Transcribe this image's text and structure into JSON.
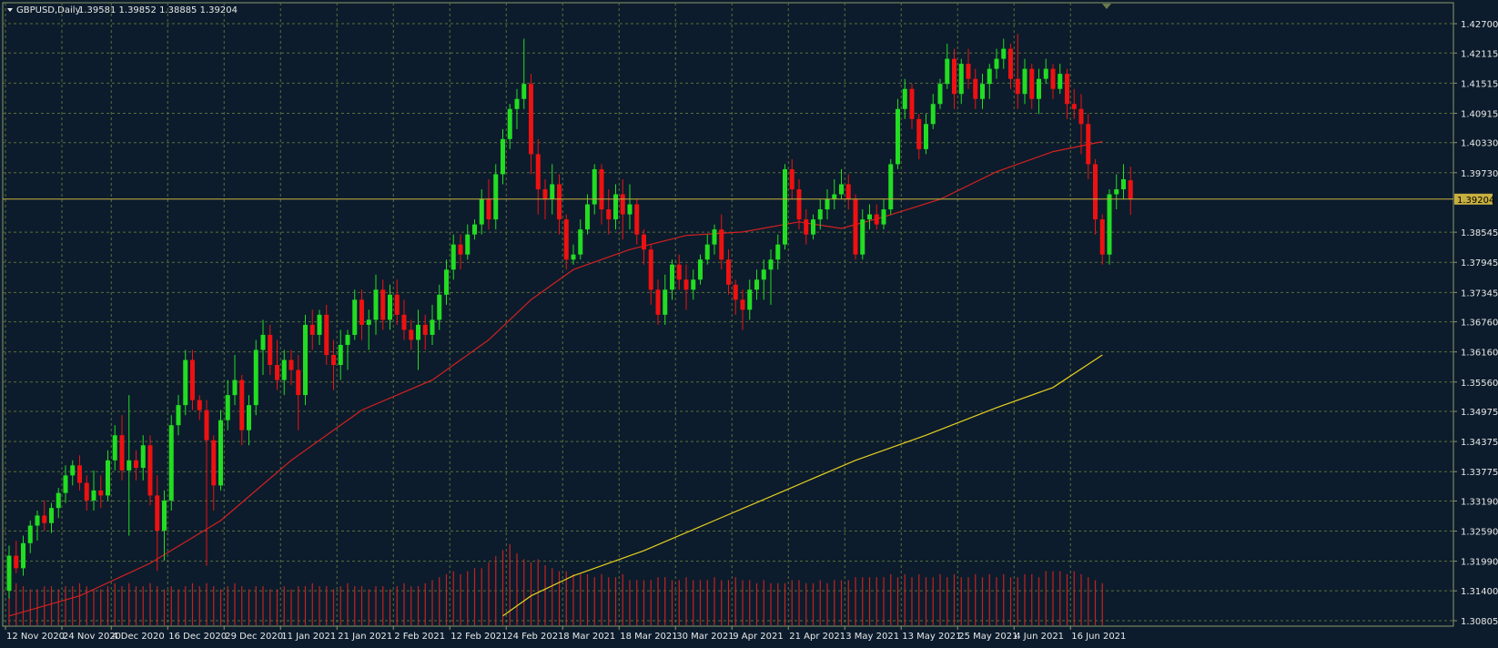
{
  "header": {
    "symbol_label": "GBPUSD,Daily",
    "ohlc": "1.39581 1.39852 1.38885 1.39204"
  },
  "colors": {
    "background": "#0c1c2c",
    "grid": "#5b6e3a",
    "frame": "#8a9a6a",
    "text": "#e8e8e8",
    "bull": "#22dd22",
    "bear": "#ee1111",
    "ma_fast": "#d42020",
    "ma_slow": "#e8d020",
    "volume": "#c42222",
    "price_tag_bg": "#c8b040",
    "price_tag_text": "#000000"
  },
  "chart_data": {
    "type": "candlestick",
    "symbol": "GBPUSD",
    "timeframe": "Daily",
    "current_price": "1.39204",
    "current_price_value": 1.39204,
    "ylim": [
      1.30805,
      1.43
    ],
    "y_tick_labels": [
      "1.42700",
      "1.42115",
      "1.41515",
      "1.40915",
      "1.40330",
      "1.39730",
      "1.38545",
      "1.37945",
      "1.37345",
      "1.36760",
      "1.36160",
      "1.35560",
      "1.34975",
      "1.34375",
      "1.33775",
      "1.33190",
      "1.32590",
      "1.31990",
      "1.31400",
      "1.30805"
    ],
    "y_tick_values": [
      1.427,
      1.42115,
      1.41515,
      1.40915,
      1.4033,
      1.3973,
      1.38545,
      1.37945,
      1.37345,
      1.3676,
      1.3616,
      1.3556,
      1.34975,
      1.34375,
      1.33775,
      1.3319,
      1.3259,
      1.3199,
      1.314,
      1.30805
    ],
    "x_tick_labels": [
      "12 Nov 2020",
      "24 Nov 2020",
      "4 Dec 2020",
      "16 Dec 2020",
      "29 Dec 2020",
      "11 Jan 2021",
      "21 Jan 2021",
      "2 Feb 2021",
      "12 Feb 2021",
      "24 Feb 2021",
      "8 Mar 2021",
      "18 Mar 2021",
      "30 Mar 2021",
      "9 Apr 2021",
      "21 Apr 2021",
      "3 May 2021",
      "13 May 2021",
      "25 May 2021",
      "4 Jun 2021",
      "16 Jun 2021"
    ],
    "x_tick_bar_index": [
      0,
      8,
      15,
      23,
      31,
      39,
      47,
      55,
      63,
      71,
      79,
      87,
      95,
      103,
      111,
      119,
      127,
      135,
      143,
      151
    ],
    "grid": true,
    "candles": [
      [
        1.314,
        1.323,
        1.3125,
        1.321
      ],
      [
        1.321,
        1.324,
        1.3175,
        1.3185
      ],
      [
        1.3185,
        1.325,
        1.317,
        1.3235
      ],
      [
        1.3235,
        1.328,
        1.3215,
        1.327
      ],
      [
        1.327,
        1.33,
        1.324,
        1.329
      ],
      [
        1.329,
        1.332,
        1.326,
        1.3275
      ],
      [
        1.3275,
        1.3315,
        1.3255,
        1.3305
      ],
      [
        1.3305,
        1.3345,
        1.3285,
        1.3335
      ],
      [
        1.3335,
        1.339,
        1.3315,
        1.337
      ],
      [
        1.337,
        1.34,
        1.335,
        1.339
      ],
      [
        1.339,
        1.341,
        1.334,
        1.3355
      ],
      [
        1.3355,
        1.337,
        1.33,
        1.332
      ],
      [
        1.332,
        1.338,
        1.33,
        1.334
      ],
      [
        1.334,
        1.337,
        1.3305,
        1.333
      ],
      [
        1.333,
        1.342,
        1.332,
        1.34
      ],
      [
        1.34,
        1.347,
        1.338,
        1.345
      ],
      [
        1.345,
        1.349,
        1.336,
        1.338
      ],
      [
        1.338,
        1.353,
        1.325,
        1.34
      ],
      [
        1.34,
        1.342,
        1.336,
        1.3385
      ],
      [
        1.3385,
        1.345,
        1.336,
        1.343
      ],
      [
        1.343,
        1.345,
        1.331,
        1.333
      ],
      [
        1.333,
        1.337,
        1.318,
        1.326
      ],
      [
        1.326,
        1.334,
        1.32,
        1.332
      ],
      [
        1.332,
        1.349,
        1.33,
        1.347
      ],
      [
        1.347,
        1.353,
        1.345,
        1.351
      ],
      [
        1.351,
        1.362,
        1.349,
        1.36
      ],
      [
        1.36,
        1.362,
        1.35,
        1.352
      ],
      [
        1.352,
        1.353,
        1.348,
        1.35
      ],
      [
        1.35,
        1.352,
        1.319,
        1.344
      ],
      [
        1.344,
        1.345,
        1.33,
        1.335
      ],
      [
        1.335,
        1.35,
        1.334,
        1.348
      ],
      [
        1.348,
        1.356,
        1.346,
        1.353
      ],
      [
        1.353,
        1.361,
        1.351,
        1.356
      ],
      [
        1.356,
        1.357,
        1.343,
        1.346
      ],
      [
        1.346,
        1.353,
        1.343,
        1.351
      ],
      [
        1.351,
        1.364,
        1.349,
        1.362
      ],
      [
        1.362,
        1.368,
        1.357,
        1.365
      ],
      [
        1.365,
        1.367,
        1.357,
        1.359
      ],
      [
        1.359,
        1.364,
        1.354,
        1.356
      ],
      [
        1.356,
        1.362,
        1.353,
        1.36
      ],
      [
        1.36,
        1.362,
        1.355,
        1.358
      ],
      [
        1.358,
        1.361,
        1.346,
        1.353
      ],
      [
        1.353,
        1.369,
        1.351,
        1.367
      ],
      [
        1.367,
        1.37,
        1.362,
        1.365
      ],
      [
        1.365,
        1.37,
        1.363,
        1.369
      ],
      [
        1.369,
        1.371,
        1.359,
        1.361
      ],
      [
        1.361,
        1.364,
        1.354,
        1.359
      ],
      [
        1.359,
        1.366,
        1.356,
        1.363
      ],
      [
        1.363,
        1.366,
        1.358,
        1.365
      ],
      [
        1.365,
        1.374,
        1.364,
        1.372
      ],
      [
        1.372,
        1.374,
        1.364,
        1.367
      ],
      [
        1.367,
        1.37,
        1.362,
        1.368
      ],
      [
        1.368,
        1.377,
        1.365,
        1.374
      ],
      [
        1.374,
        1.376,
        1.366,
        1.368
      ],
      [
        1.368,
        1.375,
        1.366,
        1.373
      ],
      [
        1.373,
        1.376,
        1.367,
        1.369
      ],
      [
        1.369,
        1.372,
        1.364,
        1.366
      ],
      [
        1.366,
        1.368,
        1.362,
        1.364
      ],
      [
        1.364,
        1.37,
        1.358,
        1.367
      ],
      [
        1.367,
        1.369,
        1.362,
        1.365
      ],
      [
        1.365,
        1.371,
        1.363,
        1.368
      ],
      [
        1.368,
        1.375,
        1.366,
        1.373
      ],
      [
        1.373,
        1.38,
        1.371,
        1.378
      ],
      [
        1.378,
        1.385,
        1.376,
        1.383
      ],
      [
        1.383,
        1.385,
        1.378,
        1.381
      ],
      [
        1.381,
        1.387,
        1.38,
        1.385
      ],
      [
        1.385,
        1.388,
        1.384,
        1.387
      ],
      [
        1.387,
        1.394,
        1.385,
        1.392
      ],
      [
        1.392,
        1.396,
        1.386,
        1.388
      ],
      [
        1.388,
        1.399,
        1.386,
        1.397
      ],
      [
        1.397,
        1.406,
        1.395,
        1.404
      ],
      [
        1.404,
        1.411,
        1.402,
        1.41
      ],
      [
        1.41,
        1.414,
        1.406,
        1.412
      ],
      [
        1.412,
        1.424,
        1.41,
        1.415
      ],
      [
        1.415,
        1.417,
        1.397,
        1.401
      ],
      [
        1.401,
        1.404,
        1.389,
        1.394
      ],
      [
        1.394,
        1.396,
        1.388,
        1.392
      ],
      [
        1.392,
        1.399,
        1.389,
        1.395
      ],
      [
        1.395,
        1.397,
        1.385,
        1.388
      ],
      [
        1.388,
        1.389,
        1.378,
        1.38
      ],
      [
        1.38,
        1.383,
        1.379,
        1.381
      ],
      [
        1.381,
        1.388,
        1.38,
        1.386
      ],
      [
        1.386,
        1.393,
        1.385,
        1.391
      ],
      [
        1.391,
        1.399,
        1.389,
        1.398
      ],
      [
        1.398,
        1.399,
        1.387,
        1.39
      ],
      [
        1.39,
        1.394,
        1.385,
        1.388
      ],
      [
        1.388,
        1.395,
        1.386,
        1.393
      ],
      [
        1.393,
        1.396,
        1.384,
        1.389
      ],
      [
        1.389,
        1.395,
        1.386,
        1.391
      ],
      [
        1.391,
        1.392,
        1.383,
        1.385
      ],
      [
        1.385,
        1.386,
        1.379,
        1.382
      ],
      [
        1.382,
        1.383,
        1.371,
        1.374
      ],
      [
        1.374,
        1.376,
        1.367,
        1.369
      ],
      [
        1.369,
        1.377,
        1.367,
        1.374
      ],
      [
        1.374,
        1.38,
        1.372,
        1.379
      ],
      [
        1.379,
        1.381,
        1.374,
        1.376
      ],
      [
        1.376,
        1.379,
        1.37,
        1.374
      ],
      [
        1.374,
        1.378,
        1.372,
        1.376
      ],
      [
        1.376,
        1.381,
        1.375,
        1.38
      ],
      [
        1.38,
        1.385,
        1.379,
        1.383
      ],
      [
        1.383,
        1.387,
        1.381,
        1.386
      ],
      [
        1.386,
        1.389,
        1.378,
        1.38
      ],
      [
        1.38,
        1.382,
        1.373,
        1.375
      ],
      [
        1.375,
        1.376,
        1.369,
        1.372
      ],
      [
        1.372,
        1.374,
        1.366,
        1.37
      ],
      [
        1.37,
        1.376,
        1.368,
        1.374
      ],
      [
        1.374,
        1.378,
        1.372,
        1.376
      ],
      [
        1.376,
        1.38,
        1.372,
        1.378
      ],
      [
        1.378,
        1.382,
        1.371,
        1.38
      ],
      [
        1.38,
        1.385,
        1.378,
        1.383
      ],
      [
        1.383,
        1.399,
        1.382,
        1.398
      ],
      [
        1.398,
        1.4,
        1.392,
        1.394
      ],
      [
        1.394,
        1.396,
        1.386,
        1.388
      ],
      [
        1.388,
        1.39,
        1.383,
        1.385
      ],
      [
        1.385,
        1.389,
        1.384,
        1.388
      ],
      [
        1.388,
        1.392,
        1.386,
        1.39
      ],
      [
        1.39,
        1.394,
        1.388,
        1.392
      ],
      [
        1.392,
        1.396,
        1.39,
        1.393
      ],
      [
        1.393,
        1.398,
        1.392,
        1.395
      ],
      [
        1.395,
        1.397,
        1.39,
        1.392
      ],
      [
        1.392,
        1.393,
        1.38,
        1.381
      ],
      [
        1.381,
        1.39,
        1.38,
        1.388
      ],
      [
        1.388,
        1.391,
        1.386,
        1.389
      ],
      [
        1.389,
        1.391,
        1.386,
        1.387
      ],
      [
        1.387,
        1.392,
        1.386,
        1.39
      ],
      [
        1.39,
        1.4,
        1.389,
        1.399
      ],
      [
        1.399,
        1.412,
        1.398,
        1.41
      ],
      [
        1.41,
        1.416,
        1.408,
        1.414
      ],
      [
        1.414,
        1.415,
        1.406,
        1.408
      ],
      [
        1.408,
        1.409,
        1.4,
        1.402
      ],
      [
        1.402,
        1.409,
        1.401,
        1.407
      ],
      [
        1.407,
        1.413,
        1.406,
        1.411
      ],
      [
        1.411,
        1.416,
        1.41,
        1.415
      ],
      [
        1.415,
        1.423,
        1.414,
        1.42
      ],
      [
        1.42,
        1.422,
        1.41,
        1.413
      ],
      [
        1.413,
        1.42,
        1.411,
        1.419
      ],
      [
        1.419,
        1.422,
        1.414,
        1.416
      ],
      [
        1.416,
        1.418,
        1.41,
        1.412
      ],
      [
        1.412,
        1.417,
        1.41,
        1.415
      ],
      [
        1.415,
        1.419,
        1.412,
        1.418
      ],
      [
        1.418,
        1.422,
        1.416,
        1.42
      ],
      [
        1.42,
        1.424,
        1.418,
        1.422
      ],
      [
        1.422,
        1.423,
        1.414,
        1.416
      ],
      [
        1.416,
        1.425,
        1.41,
        1.413
      ],
      [
        1.413,
        1.42,
        1.411,
        1.418
      ],
      [
        1.418,
        1.419,
        1.41,
        1.412
      ],
      [
        1.412,
        1.418,
        1.409,
        1.416
      ],
      [
        1.416,
        1.42,
        1.415,
        1.418
      ],
      [
        1.418,
        1.419,
        1.412,
        1.414
      ],
      [
        1.414,
        1.419,
        1.413,
        1.417
      ],
      [
        1.417,
        1.418,
        1.408,
        1.411
      ],
      [
        1.411,
        1.414,
        1.408,
        1.41
      ],
      [
        1.41,
        1.413,
        1.401,
        1.407
      ],
      [
        1.407,
        1.409,
        1.396,
        1.399
      ],
      [
        1.399,
        1.4,
        1.385,
        1.388
      ],
      [
        1.388,
        1.389,
        1.379,
        1.381
      ],
      [
        1.381,
        1.394,
        1.379,
        1.393
      ],
      [
        1.393,
        1.397,
        1.39,
        1.394
      ],
      [
        1.394,
        1.399,
        1.392,
        1.396
      ],
      [
        1.3958,
        1.3985,
        1.3889,
        1.392
      ]
    ],
    "ma_fast": [
      [
        0,
        1.309
      ],
      [
        10,
        1.313
      ],
      [
        20,
        1.3195
      ],
      [
        30,
        1.328
      ],
      [
        40,
        1.34
      ],
      [
        50,
        1.35
      ],
      [
        60,
        1.356
      ],
      [
        68,
        1.364
      ],
      [
        74,
        1.372
      ],
      [
        80,
        1.378
      ],
      [
        88,
        1.382
      ],
      [
        96,
        1.3848
      ],
      [
        104,
        1.3855
      ],
      [
        112,
        1.3875
      ],
      [
        118,
        1.3862
      ],
      [
        124,
        1.3885
      ],
      [
        132,
        1.392
      ],
      [
        140,
        1.3975
      ],
      [
        148,
        1.4015
      ],
      [
        155,
        1.4035
      ]
    ],
    "ma_slow": [
      [
        70,
        1.309
      ],
      [
        74,
        1.313
      ],
      [
        80,
        1.317
      ],
      [
        90,
        1.322
      ],
      [
        100,
        1.328
      ],
      [
        110,
        1.334
      ],
      [
        120,
        1.34
      ],
      [
        130,
        1.345
      ],
      [
        140,
        1.3505
      ],
      [
        148,
        1.3545
      ],
      [
        155,
        1.361
      ]
    ],
    "volume": [
      14,
      14,
      13,
      12,
      12,
      13,
      13,
      12,
      13,
      13,
      14,
      13,
      12,
      12,
      13,
      14,
      13,
      14,
      13,
      13,
      14,
      13,
      12,
      13,
      12,
      13,
      14,
      13,
      14,
      13,
      12,
      13,
      14,
      13,
      12,
      13,
      13,
      12,
      12,
      13,
      12,
      13,
      13,
      14,
      13,
      13,
      12,
      13,
      14,
      13,
      13,
      12,
      13,
      13,
      12,
      13,
      14,
      13,
      13,
      14,
      15,
      16,
      17,
      18,
      17,
      18,
      19,
      19,
      21,
      23,
      25,
      27,
      24,
      22,
      21,
      22,
      20,
      19,
      18,
      18,
      17,
      17,
      17,
      16,
      17,
      16,
      16,
      17,
      15,
      15,
      15,
      15,
      16,
      16,
      15,
      15,
      16,
      15,
      15,
      15,
      16,
      15,
      15,
      16,
      15,
      15,
      14,
      15,
      14,
      14,
      14,
      15,
      15,
      14,
      14,
      15,
      14,
      15,
      15,
      15,
      16,
      16,
      16,
      16,
      16,
      17,
      16,
      17,
      16,
      17,
      16,
      16,
      17,
      16,
      17,
      16,
      16,
      17,
      16,
      17,
      16,
      17,
      16,
      16,
      17,
      17,
      16,
      18,
      18,
      18,
      17,
      18,
      17,
      16,
      15,
      14
    ]
  }
}
